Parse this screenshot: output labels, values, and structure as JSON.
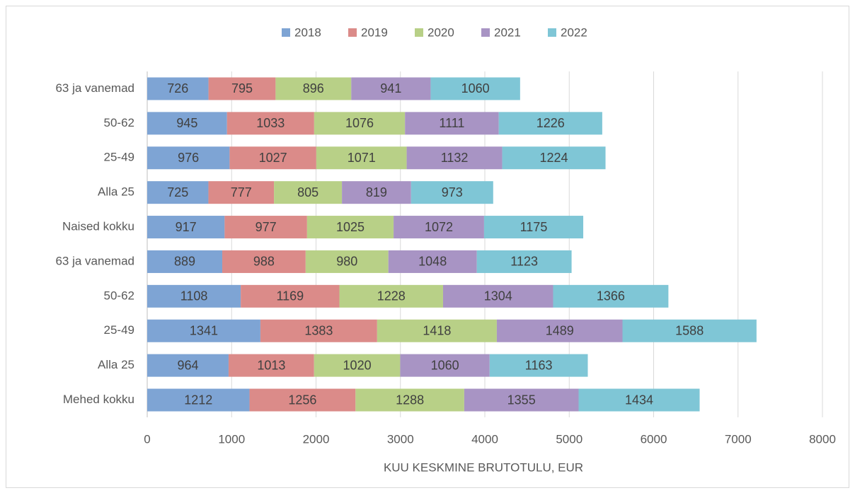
{
  "chart_data": {
    "type": "stacked_bar_horizontal",
    "x_label": "KUU KESKMINE BRUTOTULU, EUR",
    "categories": [
      "63 ja vanemad",
      "50-62",
      "25-49",
      "Alla 25",
      "Naised kokku",
      "63 ja vanemad",
      "50-62",
      "25-49",
      "Alla 25",
      "Mehed kokku"
    ],
    "series": [
      {
        "name": "2018",
        "color": "#7ea4d4",
        "values": [
          726,
          945,
          976,
          725,
          917,
          889,
          1108,
          1341,
          964,
          1212
        ]
      },
      {
        "name": "2019",
        "color": "#db8b89",
        "values": [
          795,
          1033,
          1027,
          777,
          977,
          988,
          1169,
          1383,
          1013,
          1256
        ]
      },
      {
        "name": "2020",
        "color": "#b8d087",
        "values": [
          896,
          1076,
          1071,
          805,
          1025,
          980,
          1228,
          1418,
          1020,
          1288
        ]
      },
      {
        "name": "2021",
        "color": "#a894c4",
        "values": [
          941,
          1111,
          1132,
          819,
          1072,
          1048,
          1304,
          1489,
          1060,
          1355
        ]
      },
      {
        "name": "2022",
        "color": "#7fc6d6",
        "values": [
          1060,
          1226,
          1224,
          973,
          1175,
          1123,
          1366,
          1588,
          1163,
          1434
        ]
      }
    ],
    "xlim": [
      0,
      8000
    ],
    "xticks": [
      0,
      1000,
      2000,
      3000,
      4000,
      5000,
      6000,
      7000,
      8000
    ],
    "grid": true,
    "legend": "top"
  }
}
